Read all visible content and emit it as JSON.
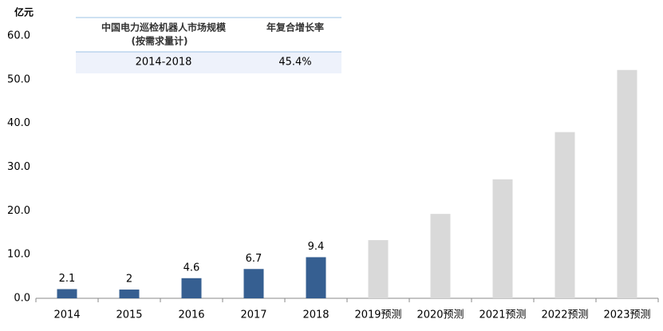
{
  "chart_data": {
    "type": "bar",
    "unit": "亿元",
    "categories": [
      "2014",
      "2015",
      "2016",
      "2017",
      "2018",
      "2019预测",
      "2020预测",
      "2021预测",
      "2022预测",
      "2023预测"
    ],
    "series": [
      {
        "color": "#365f91",
        "data_labels": true,
        "values": [
          2.1,
          2.0,
          4.6,
          6.7,
          9.4,
          null,
          null,
          null,
          null,
          null
        ]
      },
      {
        "color": "#d9d9d9",
        "data_labels": false,
        "values": [
          null,
          null,
          null,
          null,
          null,
          13.3,
          19.3,
          27.2,
          38.0,
          52.2
        ]
      }
    ],
    "ylim": [
      0,
      60
    ],
    "yticks": [
      {
        "value": 0,
        "label": "0.0"
      },
      {
        "value": 10,
        "label": "10.0"
      },
      {
        "value": 20,
        "label": "20.0"
      },
      {
        "value": 30,
        "label": "30.0"
      },
      {
        "value": 40,
        "label": "40.0"
      },
      {
        "value": 50,
        "label": "50.0"
      },
      {
        "value": 60,
        "label": "60.0"
      }
    ],
    "table": {
      "header": [
        "中国电力巡检机器人市场规模",
        "(按需求量计)",
        "年复合增长率"
      ],
      "rows": [
        [
          "2014-2018",
          "45.4%"
        ]
      ]
    }
  }
}
